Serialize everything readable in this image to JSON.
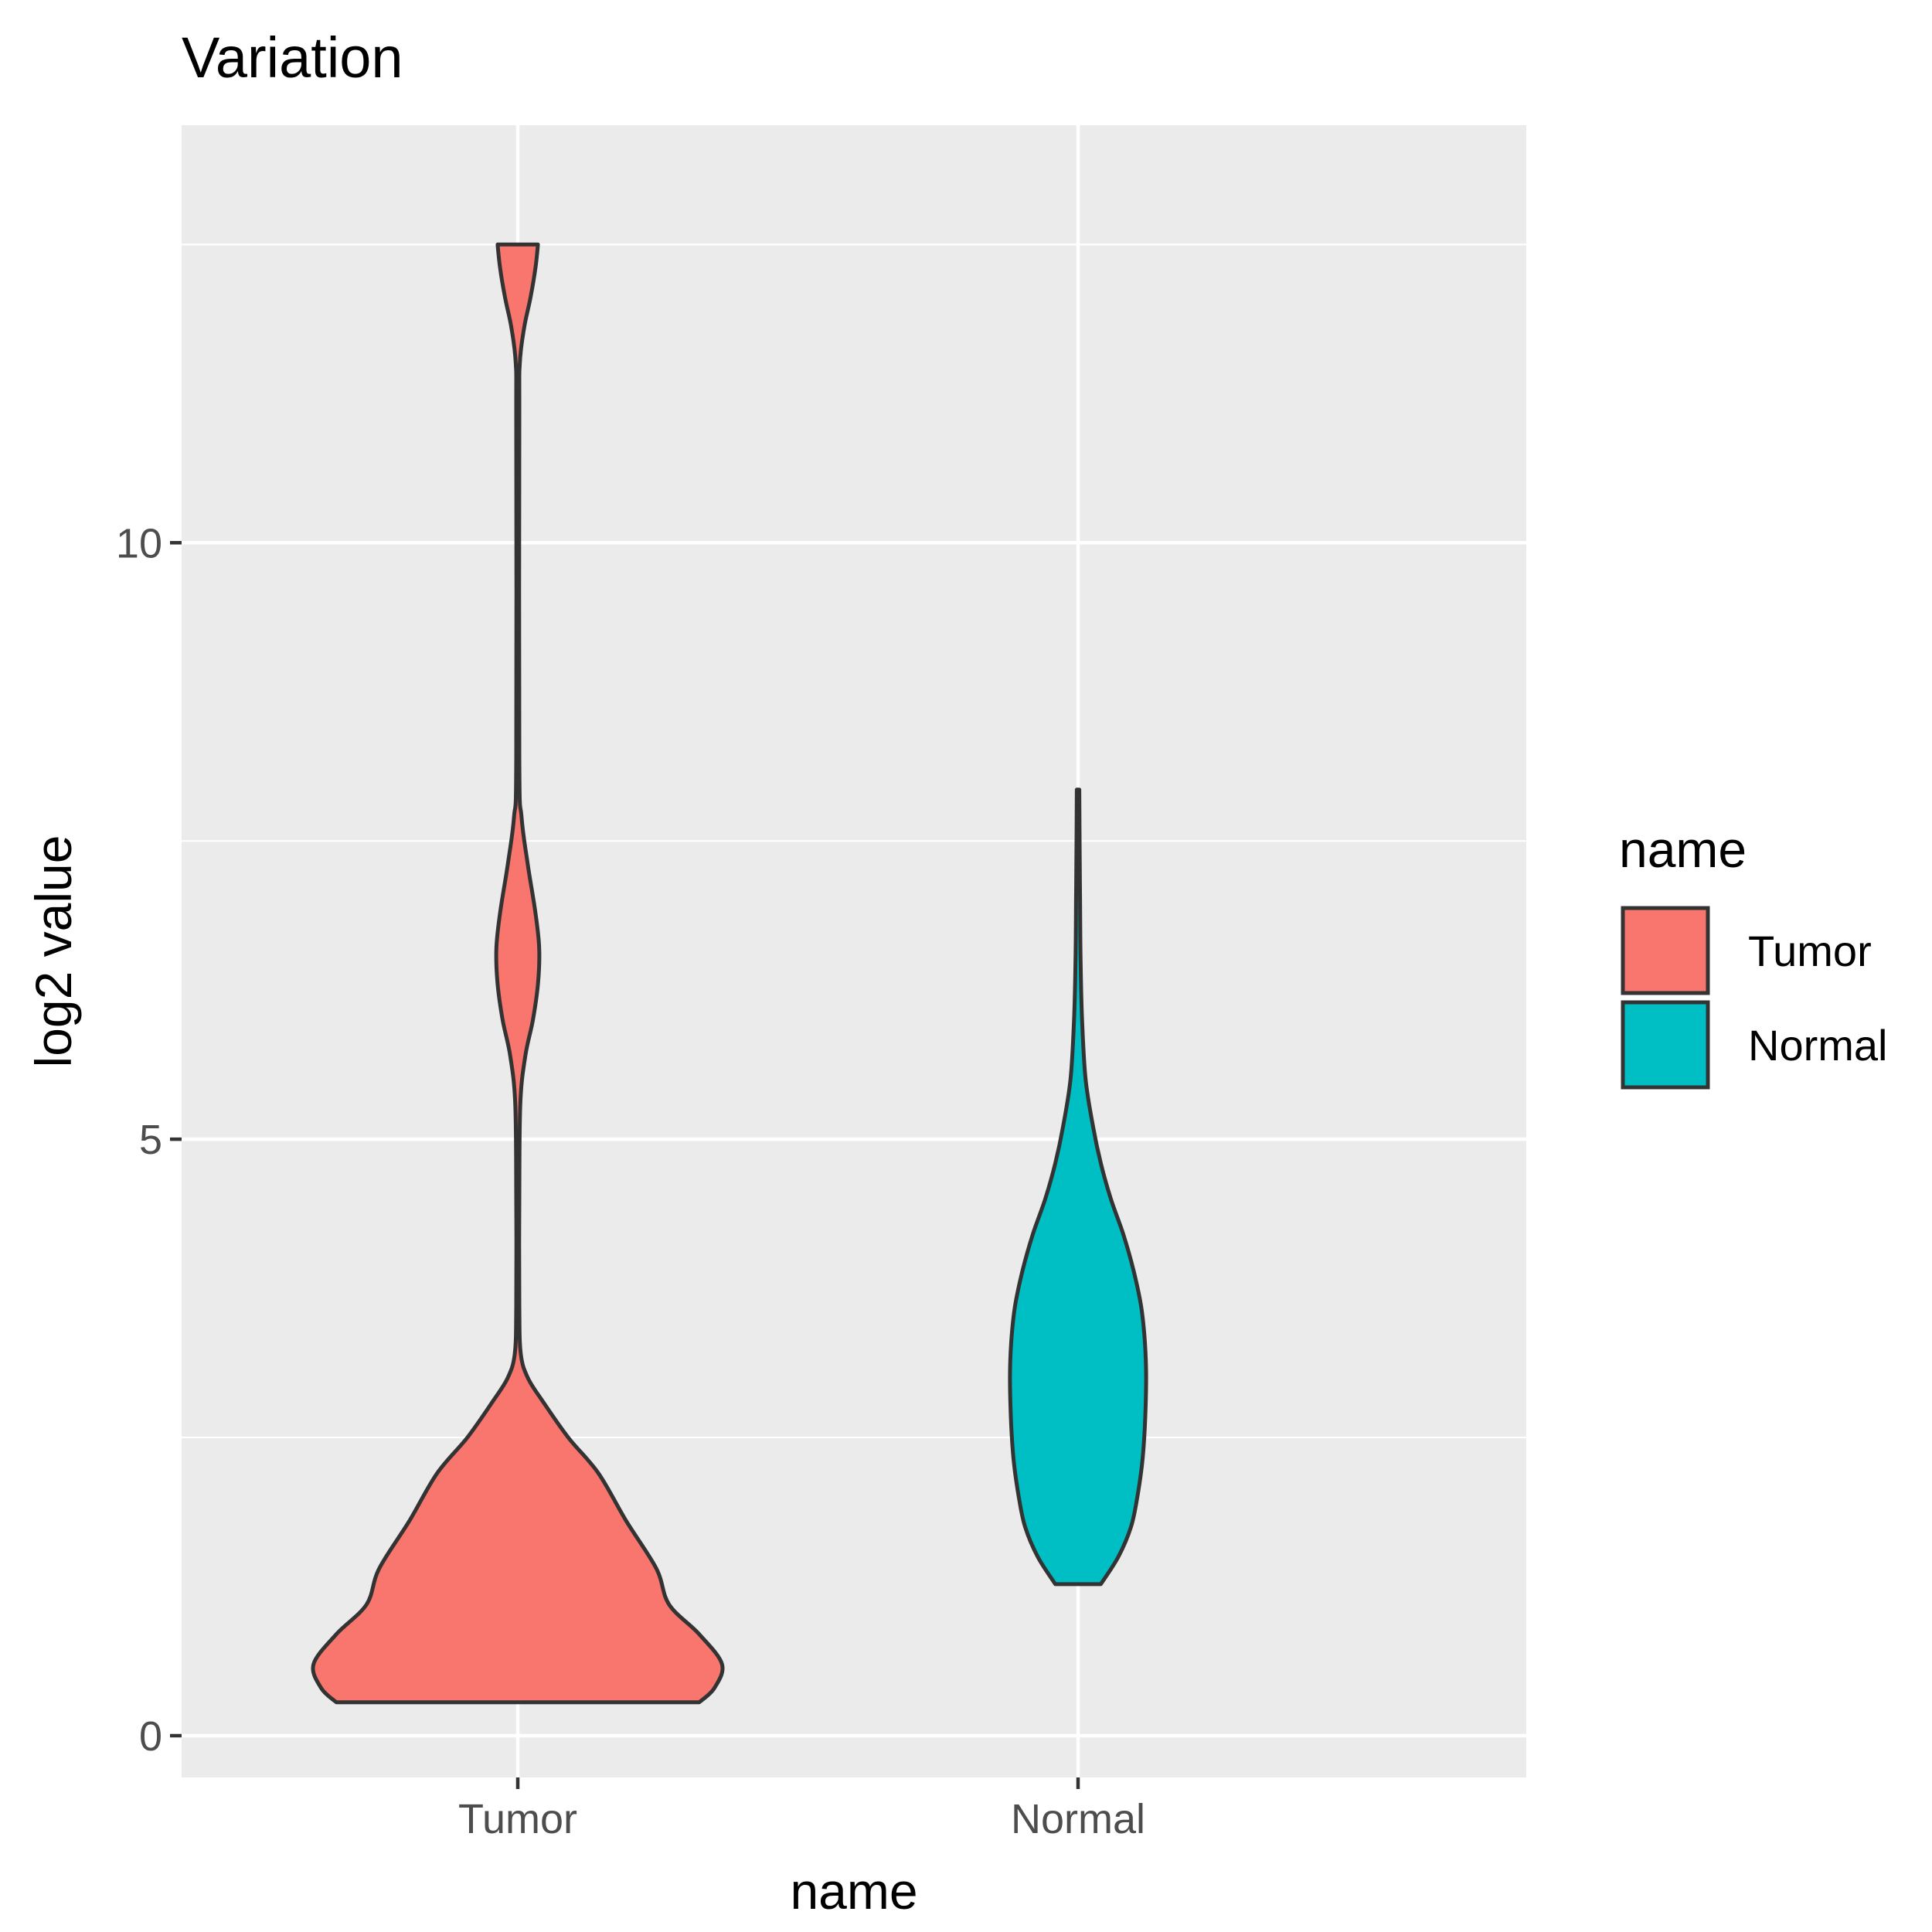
{
  "chart_data": {
    "type": "violin",
    "title": "Variation",
    "xlabel": "name",
    "ylabel": "log2 value",
    "categories": [
      "Tumor",
      "Normal"
    ],
    "y_ticks": [
      0,
      5,
      10
    ],
    "ylim": [
      -0.35,
      13.5
    ],
    "grid": true,
    "legend": {
      "title": "name",
      "placement": "right",
      "entries": [
        {
          "label": "Tumor",
          "color": "#F8766D"
        },
        {
          "label": "Normal",
          "color": "#00BFC4"
        }
      ]
    },
    "series": [
      {
        "name": "Tumor",
        "color": "#F8766D",
        "y_min": 0.28,
        "y_max": 12.5,
        "density_profile": [
          [
            0.28,
            0.72
          ],
          [
            0.4,
            0.78
          ],
          [
            0.6,
            0.81
          ],
          [
            0.85,
            0.72
          ],
          [
            1.1,
            0.6
          ],
          [
            1.4,
            0.55
          ],
          [
            1.8,
            0.43
          ],
          [
            2.2,
            0.32
          ],
          [
            2.5,
            0.2
          ],
          [
            2.8,
            0.1
          ],
          [
            3.0,
            0.04
          ],
          [
            3.2,
            0.012
          ],
          [
            3.6,
            0.006
          ],
          [
            4.5,
            0.006
          ],
          [
            5.3,
            0.01
          ],
          [
            5.7,
            0.03
          ],
          [
            6.0,
            0.06
          ],
          [
            6.3,
            0.08
          ],
          [
            6.6,
            0.085
          ],
          [
            6.9,
            0.07
          ],
          [
            7.3,
            0.04
          ],
          [
            7.7,
            0.015
          ],
          [
            8.2,
            0.006
          ],
          [
            11.0,
            0.006
          ],
          [
            11.5,
            0.008
          ],
          [
            11.8,
            0.025
          ],
          [
            12.05,
            0.05
          ],
          [
            12.3,
            0.07
          ],
          [
            12.5,
            0.08
          ]
        ]
      },
      {
        "name": "Normal",
        "color": "#00BFC4",
        "y_min": 1.27,
        "y_max": 7.93,
        "density_profile": [
          [
            1.27,
            0.09
          ],
          [
            1.5,
            0.16
          ],
          [
            1.75,
            0.21
          ],
          [
            2.0,
            0.235
          ],
          [
            2.3,
            0.255
          ],
          [
            2.6,
            0.265
          ],
          [
            3.0,
            0.27
          ],
          [
            3.3,
            0.265
          ],
          [
            3.6,
            0.25
          ],
          [
            3.9,
            0.22
          ],
          [
            4.2,
            0.18
          ],
          [
            4.5,
            0.13
          ],
          [
            4.8,
            0.09
          ],
          [
            5.1,
            0.06
          ],
          [
            5.5,
            0.03
          ],
          [
            6.0,
            0.016
          ],
          [
            6.5,
            0.01
          ],
          [
            7.0,
            0.008
          ],
          [
            7.5,
            0.006
          ],
          [
            7.93,
            0.005
          ]
        ]
      }
    ]
  }
}
